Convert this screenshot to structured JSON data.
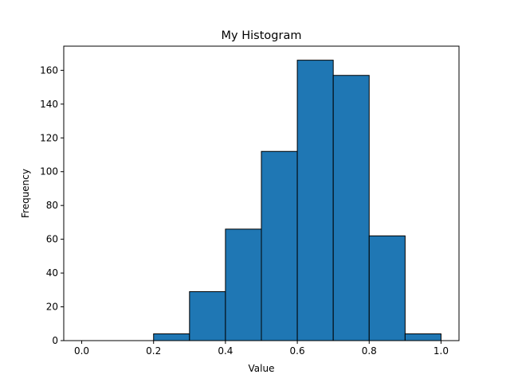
{
  "chart_data": {
    "type": "bar",
    "title": "My Histogram",
    "xlabel": "Value",
    "ylabel": "Frequency",
    "bin_edges": [
      0.0,
      0.1,
      0.2,
      0.3,
      0.4,
      0.5,
      0.6,
      0.7,
      0.8,
      0.9,
      1.0
    ],
    "values": [
      0,
      0,
      4,
      29,
      66,
      112,
      166,
      157,
      62,
      4
    ],
    "xlim": [
      -0.05,
      1.05
    ],
    "ylim": [
      0,
      174.3
    ],
    "xticks": [
      0.0,
      0.2,
      0.4,
      0.6,
      0.8,
      1.0
    ],
    "xtick_labels": [
      "0.0",
      "0.2",
      "0.4",
      "0.6",
      "0.8",
      "1.0"
    ],
    "yticks": [
      0,
      20,
      40,
      60,
      80,
      100,
      120,
      140,
      160
    ],
    "ytick_labels": [
      "0",
      "20",
      "40",
      "60",
      "80",
      "100",
      "120",
      "140",
      "160"
    ],
    "bar_color": "#1f77b4",
    "edge_color": "#000000",
    "grid": false,
    "legend": "none"
  }
}
